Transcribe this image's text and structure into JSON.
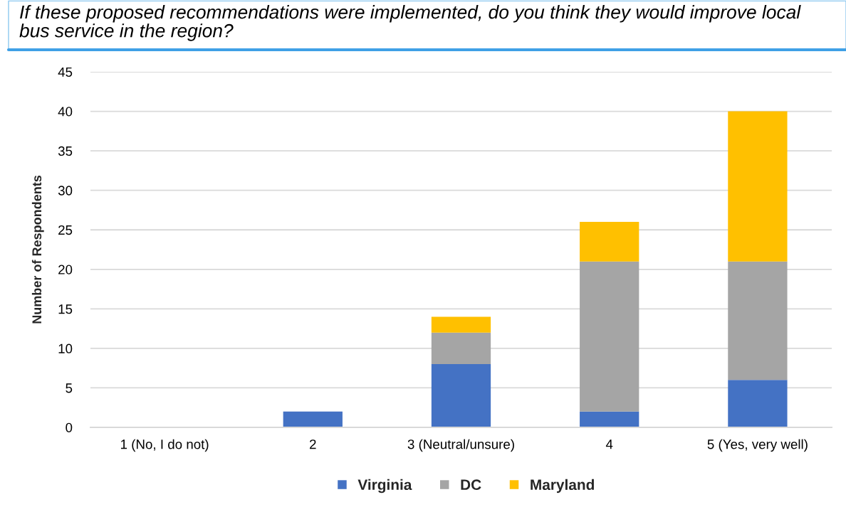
{
  "chart_data": {
    "type": "bar",
    "title": "If these proposed recommendations were implemented, do you think they would improve local bus service in the region?",
    "ylabel": "Number of Respondents",
    "categories": [
      "1 (No, I do not)",
      "2",
      "3 (Neutral/unsure)",
      "4",
      "5 (Yes, very well)"
    ],
    "series": [
      {
        "name": "Virginia",
        "color": "#4472c4",
        "values": [
          0,
          2,
          8,
          2,
          6
        ]
      },
      {
        "name": "DC",
        "color": "#a5a5a5",
        "values": [
          0,
          0,
          4,
          19,
          15
        ]
      },
      {
        "name": "Maryland",
        "color": "#ffc000",
        "values": [
          0,
          0,
          2,
          5,
          19
        ]
      }
    ],
    "stacked": true,
    "ylim": [
      0,
      45
    ],
    "yticks": [
      0,
      5,
      10,
      15,
      20,
      25,
      30,
      35,
      40,
      45
    ],
    "grid": "y",
    "legend": "bottom"
  }
}
